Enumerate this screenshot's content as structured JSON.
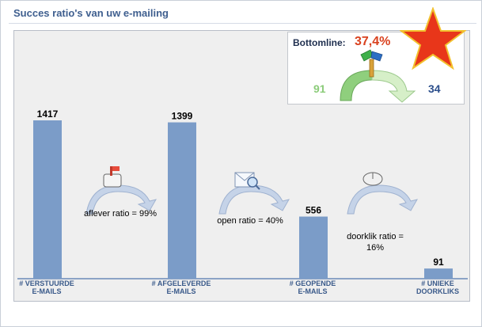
{
  "title": "Succes ratio's van uw e-mailing",
  "bottomline": {
    "label": "Bottomline:",
    "value": "37,4%",
    "left_value": "91",
    "right_value": "34"
  },
  "chart_data": {
    "type": "bar",
    "categories": [
      "# VERSTUURDE E-MAILS",
      "# AFGELEVERDE E-MAILS",
      "# GEOPENDE E-MAILS",
      "# UNIEKE DOORKLIKS"
    ],
    "category_lines": [
      [
        "# VERSTUURDE",
        "E-MAILS"
      ],
      [
        "# AFGELEVERDE",
        "E-MAILS"
      ],
      [
        "# GEOPENDE",
        "E-MAILS"
      ],
      [
        "# UNIEKE",
        "DOORKLIKS"
      ]
    ],
    "values": [
      1417,
      1399,
      556,
      91
    ],
    "ylim": [
      0,
      1417
    ],
    "grid": false,
    "bar_color": "#7b9cc8",
    "annotations": [
      {
        "text": "aflever ratio = 99%",
        "lines": [
          "aflever ratio = 99%"
        ],
        "icon": "mailbox-icon"
      },
      {
        "text": "open ratio = 40%",
        "lines": [
          "open ratio = 40%"
        ],
        "icon": "open-envelope-icon"
      },
      {
        "text": "doorklik ratio = 16%",
        "lines": [
          "doorklik ratio =",
          "16%"
        ],
        "icon": "mouse-icon"
      }
    ]
  },
  "colors": {
    "title": "#3f5f8f",
    "accent_red": "#d9411e",
    "green": "#8ccc7a",
    "blue": "#2c4f8c",
    "star": "#e8361a"
  }
}
